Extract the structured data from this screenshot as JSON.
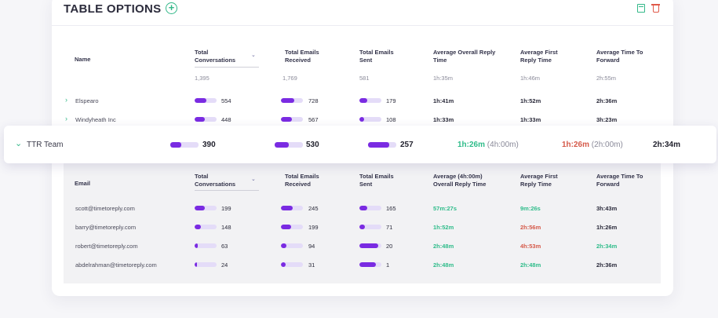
{
  "header": {
    "title": "TABLE OPTIONS"
  },
  "icons": {
    "add": "plus-circle-icon",
    "save": "save-icon",
    "delete": "trash-icon",
    "accent": "#33b889",
    "danger": "#e05a4a",
    "bar": "#7a2be2"
  },
  "main_table": {
    "columns": [
      "Name",
      "Total Conversations",
      "Total Emails Received",
      "Total Emails Sent",
      "Average Overall Reply Time",
      "Average First Reply Time",
      "Average Time To Forward"
    ],
    "totals": [
      "1,395",
      "1,769",
      "581",
      "1h:35m",
      "1h:46m",
      "2h:55m"
    ],
    "rows": [
      {
        "name": "Elspearo",
        "conversations": "554",
        "received": "728",
        "sent": "179",
        "overall": "1h:41m",
        "first": "1h:52m",
        "forward": "2h:36m",
        "conv_pct": 0.55,
        "rec_pct": 0.6,
        "sent_pct": 0.35
      },
      {
        "name": "Windyheath Inc",
        "conversations": "448",
        "received": "567",
        "sent": "108",
        "overall": "1h:33m",
        "first": "1h:33m",
        "forward": "3h:23m",
        "conv_pct": 0.45,
        "rec_pct": 0.5,
        "sent_pct": 0.22
      }
    ]
  },
  "expanded_row": {
    "name": "TTR Team",
    "conversations": "390",
    "received": "530",
    "sent": "257",
    "overall": "1h:26m",
    "overall_extra": "(4h:00m)",
    "first": "1h:26m",
    "first_extra": "(2h:00m)",
    "forward": "2h:34m",
    "conv_pct": 0.4,
    "rec_pct": 0.5,
    "sent_pct": 0.75
  },
  "sub_table": {
    "columns": [
      "Email",
      "Total Conversations",
      "Total Emails Received",
      "Total Emails Sent",
      "Average (4h:00m) Overall Reply Time",
      "Average First Reply Time",
      "Average Time To Forward"
    ],
    "rows": [
      {
        "email": "scott@timetoreply.com",
        "conversations": "199",
        "received": "245",
        "sent": "165",
        "overall": "57m:27s",
        "first": "9m:26s",
        "forward": "3h:43m",
        "overall_color": "green",
        "first_color": "green",
        "forward_color": "normal",
        "conv_pct": 0.45,
        "rec_pct": 0.55,
        "sent_pct": 0.35
      },
      {
        "email": "barry@timetoreply.com",
        "conversations": "148",
        "received": "199",
        "sent": "71",
        "overall": "1h:52m",
        "first": "2h:56m",
        "forward": "1h:26m",
        "overall_color": "green",
        "first_color": "red",
        "forward_color": "normal",
        "conv_pct": 0.3,
        "rec_pct": 0.45,
        "sent_pct": 0.25
      },
      {
        "email": "robert@timetoreply.com",
        "conversations": "63",
        "received": "94",
        "sent": "20",
        "overall": "2h:48m",
        "first": "4h:53m",
        "forward": "2h:34m",
        "overall_color": "green",
        "first_color": "red",
        "forward_color": "green",
        "conv_pct": 0.15,
        "rec_pct": 0.25,
        "sent_pct": 0.85
      },
      {
        "email": "abdelrahman@timetoreply.com",
        "conversations": "24",
        "received": "31",
        "sent": "1",
        "overall": "2h:48m",
        "first": "2h:48m",
        "forward": "2h:36m",
        "overall_color": "green",
        "first_color": "green",
        "forward_color": "normal",
        "conv_pct": 0.1,
        "rec_pct": 0.2,
        "sent_pct": 0.75
      }
    ]
  }
}
